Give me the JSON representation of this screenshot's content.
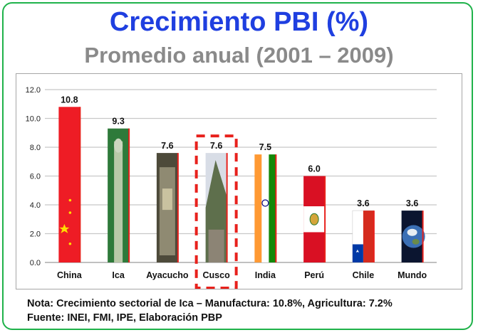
{
  "title": "Crecimiento PBI (%)",
  "subtitle": "Promedio anual (2001 – 2009)",
  "notes": {
    "line1": "Nota: Crecimiento sectorial de Ica – Manufactura: 10.8%, Agricultura: 7.2%",
    "line2": "Fuente: INEI, FMI, IPE, Elaboración PBP"
  },
  "colors": {
    "title": "#1f3fe0",
    "subtitle": "#8a8a8a",
    "frame": "#1fb24a",
    "highlight": "#e8211c",
    "bar_edge": "#e8211c"
  },
  "chart_data": {
    "type": "bar",
    "categories": [
      "China",
      "Ica",
      "Ayacucho",
      "Cusco",
      "India",
      "Perú",
      "Chile",
      "Mundo"
    ],
    "values": [
      10.8,
      9.3,
      7.6,
      7.6,
      7.5,
      6.0,
      3.6,
      3.6
    ],
    "data_labels": [
      "10.8",
      "9.3",
      "7.6",
      "7.6",
      "7.5",
      "6.0",
      "3.6",
      "3.6"
    ],
    "ylim": [
      0,
      12
    ],
    "yticks": [
      "0.0",
      "2.0",
      "4.0",
      "6.0",
      "8.0",
      "10.0",
      "12.0"
    ],
    "grid": true,
    "highlighted_category": "Cusco",
    "bar_fills": [
      "china-flag",
      "asparagus-photo",
      "ayacucho-photo",
      "machu-picchu-photo",
      "india-flag",
      "peru-flag",
      "chile-flag",
      "earth-photo"
    ]
  }
}
